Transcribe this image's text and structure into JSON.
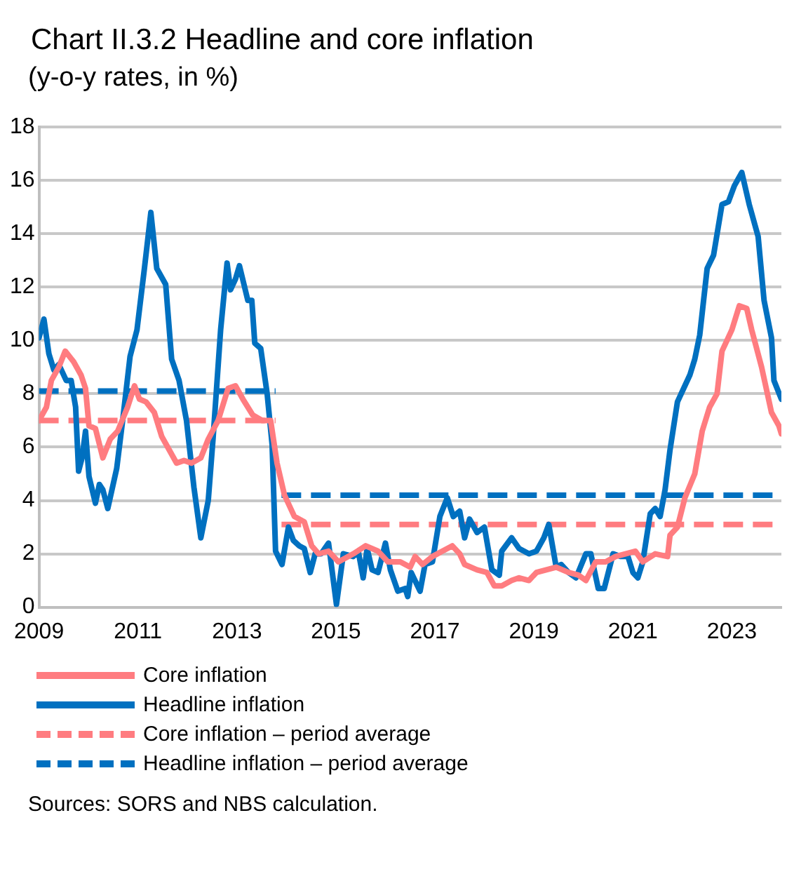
{
  "chart_data": {
    "type": "line",
    "title": "Chart II.3.2 Headline and core inflation",
    "subtitle": "(y-o-y rates, in %)",
    "annotations": [
      "Sources: SORS and NBS calculation."
    ],
    "xlim": [
      2009,
      2024
    ],
    "xticks": [
      2009,
      2011,
      2013,
      2015,
      2017,
      2019,
      2021,
      2023
    ],
    "ylim": [
      0,
      18
    ],
    "yticks": [
      0,
      2,
      4,
      6,
      8,
      10,
      12,
      14,
      16,
      18
    ],
    "grid": "y",
    "legend": "bottom",
    "marker": "none",
    "series": [
      {
        "name": "Core inflation",
        "color": "#ff7c80",
        "line_style": "solid",
        "x": [
          2009.0,
          2009.15,
          2009.25,
          2009.4,
          2009.53,
          2009.7,
          2009.85,
          2009.94,
          2010.01,
          2010.14,
          2010.29,
          2010.44,
          2010.59,
          2010.79,
          2010.93,
          2011.03,
          2011.16,
          2011.33,
          2011.48,
          2011.78,
          2011.93,
          2012.08,
          2012.27,
          2012.42,
          2012.62,
          2012.82,
          2012.97,
          2013.12,
          2013.32,
          2013.51,
          2013.68,
          2013.81,
          2013.96,
          2014.16,
          2014.36,
          2014.51,
          2014.65,
          2014.85,
          2015.05,
          2015.35,
          2015.6,
          2015.85,
          2016.05,
          2016.3,
          2016.5,
          2016.6,
          2016.75,
          2016.95,
          2017.15,
          2017.35,
          2017.5,
          2017.6,
          2017.85,
          2018.05,
          2018.2,
          2018.35,
          2018.55,
          2018.7,
          2018.9,
          2019.05,
          2019.25,
          2019.45,
          2019.7,
          2019.9,
          2020.05,
          2020.25,
          2020.45,
          2020.65,
          2020.85,
          2021.05,
          2021.2,
          2021.45,
          2021.7,
          2021.75,
          2021.9,
          2022.05,
          2022.25,
          2022.4,
          2022.55,
          2022.7,
          2022.8,
          2023.0,
          2023.15,
          2023.3,
          2023.4,
          2023.6,
          2023.8,
          2023.95,
          2024.0
        ],
        "values": [
          7.0,
          7.5,
          8.5,
          9.0,
          9.6,
          9.2,
          8.7,
          8.2,
          6.8,
          6.7,
          5.6,
          6.3,
          6.6,
          7.5,
          8.3,
          7.8,
          7.7,
          7.3,
          6.4,
          5.4,
          5.5,
          5.4,
          5.6,
          6.3,
          7.0,
          8.2,
          8.3,
          7.8,
          7.2,
          7.0,
          7.0,
          5.4,
          4.2,
          3.4,
          3.2,
          2.3,
          2.0,
          2.1,
          1.7,
          2.0,
          2.3,
          2.1,
          1.7,
          1.7,
          1.5,
          1.9,
          1.6,
          1.9,
          2.1,
          2.3,
          2.0,
          1.6,
          1.4,
          1.3,
          0.8,
          0.8,
          1.0,
          1.1,
          1.0,
          1.3,
          1.4,
          1.5,
          1.3,
          1.2,
          1.0,
          1.7,
          1.7,
          1.9,
          2.0,
          2.1,
          1.7,
          2.0,
          1.9,
          2.7,
          3.0,
          4.1,
          5.0,
          6.6,
          7.5,
          8.0,
          9.6,
          10.4,
          11.3,
          11.2,
          10.4,
          9.0,
          7.3,
          6.8,
          6.5
        ]
      },
      {
        "name": "Headline inflation",
        "color": "#0070c0",
        "line_style": "solid",
        "x": [
          2009.0,
          2009.1,
          2009.2,
          2009.3,
          2009.4,
          2009.55,
          2009.65,
          2009.74,
          2009.8,
          2009.87,
          2009.94,
          2010.01,
          2010.14,
          2010.22,
          2010.29,
          2010.39,
          2010.57,
          2010.69,
          2010.84,
          2010.98,
          2011.13,
          2011.26,
          2011.38,
          2011.56,
          2011.68,
          2011.83,
          2011.98,
          2012.13,
          2012.27,
          2012.42,
          2012.52,
          2012.67,
          2012.8,
          2012.87,
          2012.97,
          2013.05,
          2013.22,
          2013.3,
          2013.36,
          2013.48,
          2013.61,
          2013.71,
          2013.78,
          2013.91,
          2014.04,
          2014.14,
          2014.26,
          2014.36,
          2014.48,
          2014.58,
          2014.7,
          2014.85,
          2015.01,
          2015.15,
          2015.35,
          2015.45,
          2015.55,
          2015.63,
          2015.73,
          2015.85,
          2016.0,
          2016.1,
          2016.25,
          2016.4,
          2016.45,
          2016.52,
          2016.7,
          2016.8,
          2016.95,
          2017.1,
          2017.25,
          2017.37,
          2017.5,
          2017.6,
          2017.7,
          2017.85,
          2018.0,
          2018.15,
          2018.3,
          2018.35,
          2018.55,
          2018.7,
          2018.9,
          2019.05,
          2019.2,
          2019.3,
          2019.45,
          2019.55,
          2019.7,
          2019.85,
          2020.05,
          2020.15,
          2020.3,
          2020.42,
          2020.6,
          2020.75,
          2020.9,
          2021.0,
          2021.1,
          2021.2,
          2021.35,
          2021.45,
          2021.55,
          2021.65,
          2021.75,
          2021.9,
          2022.05,
          2022.15,
          2022.25,
          2022.35,
          2022.5,
          2022.63,
          2022.8,
          2022.93,
          2023.05,
          2023.2,
          2023.35,
          2023.53,
          2023.65,
          2023.8,
          2023.85,
          2024.0
        ],
        "values": [
          10.1,
          10.8,
          9.5,
          8.9,
          9.1,
          8.5,
          8.5,
          7.5,
          5.1,
          5.6,
          6.6,
          4.9,
          3.9,
          4.6,
          4.4,
          3.7,
          5.2,
          7.0,
          9.4,
          10.4,
          12.7,
          14.8,
          12.7,
          12.1,
          9.3,
          8.5,
          7.0,
          4.5,
          2.6,
          4.0,
          6.4,
          10.4,
          12.9,
          11.9,
          12.3,
          12.8,
          11.5,
          11.5,
          9.9,
          9.7,
          8.0,
          6.1,
          2.1,
          1.6,
          3.0,
          2.5,
          2.3,
          2.2,
          1.3,
          2.0,
          2.0,
          2.4,
          0.1,
          2.0,
          1.9,
          2.1,
          1.1,
          2.2,
          1.4,
          1.3,
          2.4,
          1.4,
          0.6,
          0.7,
          0.4,
          1.3,
          0.6,
          1.6,
          1.7,
          3.4,
          4.1,
          3.4,
          3.6,
          2.6,
          3.3,
          2.8,
          3.0,
          1.4,
          1.2,
          2.1,
          2.6,
          2.2,
          2.0,
          2.1,
          2.6,
          3.1,
          1.5,
          1.6,
          1.3,
          1.1,
          2.0,
          2.0,
          0.7,
          0.7,
          2.0,
          1.9,
          1.9,
          1.3,
          1.1,
          1.7,
          3.5,
          3.7,
          3.4,
          4.4,
          5.9,
          7.7,
          8.3,
          8.7,
          9.3,
          10.2,
          12.7,
          13.2,
          15.1,
          15.2,
          15.8,
          16.3,
          15.1,
          13.9,
          11.5,
          10.1,
          8.5,
          7.8
        ]
      },
      {
        "name": "Core inflation – period average",
        "color": "#ff7c80",
        "line_style": "dashed",
        "x": [
          2009.0,
          2013.78,
          2013.85,
          2013.9,
          2024.0
        ],
        "values": [
          7.0,
          7.0,
          null,
          3.1,
          3.1
        ]
      },
      {
        "name": "Headline inflation – period average",
        "color": "#0070c0",
        "line_style": "dashed",
        "x": [
          2009.0,
          2013.78,
          2013.85,
          2013.9,
          2024.0
        ],
        "values": [
          8.1,
          8.1,
          null,
          4.2,
          4.2
        ]
      }
    ]
  }
}
